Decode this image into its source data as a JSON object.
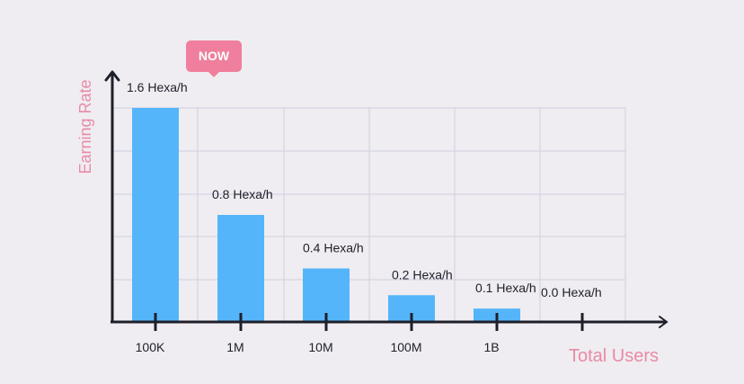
{
  "chart_data": {
    "type": "bar",
    "categories": [
      "100K",
      "1M",
      "10M",
      "100M",
      "1B",
      ""
    ],
    "values": [
      1.6,
      0.8,
      0.4,
      0.2,
      0.1,
      0.0
    ],
    "data_labels": [
      "1.6 Hexa/h",
      "0.8 Hexa/h",
      "0.4 Hexa/h",
      "0.2 Hexa/h",
      "0.1 Hexa/h",
      "0.0 Hexa/h"
    ],
    "title": "",
    "xlabel": "Total Users",
    "ylabel": "Earning Rate",
    "ylim": [
      0,
      1.6
    ],
    "grid": true,
    "legend": "none",
    "bar_color": "#55b5fa",
    "label_color": "#e98aa6",
    "badge_color": "#ef7f9c",
    "axis_color": "#1f1f2a",
    "grid_color": "#cfcfe0",
    "badge": {
      "text": "NOW",
      "category": "100K"
    }
  }
}
